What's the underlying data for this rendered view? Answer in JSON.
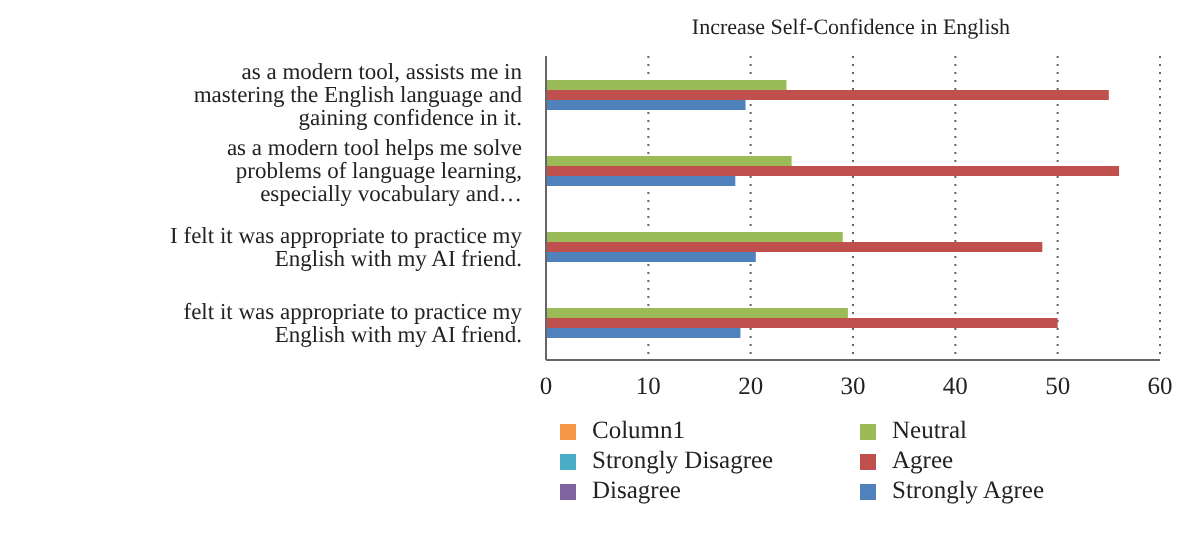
{
  "chart_data": {
    "type": "bar",
    "orientation": "horizontal",
    "title": "Increase Self-Confidence in English",
    "categories": [
      "as a modern tool, assists me in mastering the English language and gaining confidence in it.",
      "as a modern tool helps me solve problems of language learning, especially vocabulary and…",
      "I felt it was appropriate to practice my English with my AI friend.",
      "felt it was appropriate to practice my English with my AI friend."
    ],
    "series": [
      {
        "name": "Column1",
        "color": "#f79646",
        "values": [
          null,
          null,
          null,
          null
        ]
      },
      {
        "name": "Strongly Disagree",
        "color": "#4bacc6",
        "values": [
          null,
          null,
          null,
          null
        ]
      },
      {
        "name": "Disagree",
        "color": "#8064a2",
        "values": [
          null,
          null,
          null,
          null
        ]
      },
      {
        "name": "Neutral",
        "color": "#9bbb59",
        "values": [
          23.5,
          24,
          29,
          29.5
        ]
      },
      {
        "name": "Agree",
        "color": "#c0504d",
        "values": [
          55,
          56,
          48.5,
          50
        ]
      },
      {
        "name": "Strongly Agree",
        "color": "#4f81bd",
        "values": [
          19.5,
          18.5,
          20.5,
          19
        ]
      }
    ],
    "xlim": [
      0,
      60
    ],
    "xticks": [
      0,
      10,
      20,
      30,
      40,
      50,
      60
    ],
    "grid": "x",
    "legend": "bottom"
  }
}
